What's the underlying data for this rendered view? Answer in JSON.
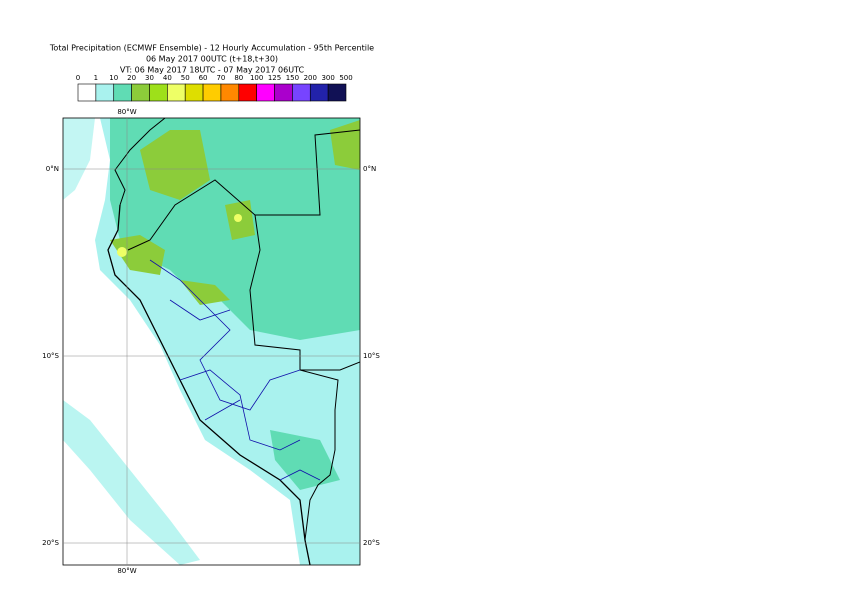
{
  "header": {
    "title": "Total Precipitation (ECMWF Ensemble) - 12 Hourly Accumulation - 95th Percentile",
    "base_time": "06 May 2017 00UTC (t+18,t+30)",
    "valid_time": "VT: 06 May 2017 18UTC - 07 May 2017 06UTC"
  },
  "colorbar": {
    "levels": [
      0,
      1,
      10,
      20,
      30,
      40,
      50,
      60,
      70,
      80,
      100,
      125,
      150,
      200,
      300,
      500
    ],
    "colors": [
      "#ffffff",
      "#a9f2ee",
      "#60dcb4",
      "#8ccc3a",
      "#9ee01a",
      "#eeff66",
      "#dede00",
      "#ffcc00",
      "#ff8800",
      "#ff0000",
      "#ff00ff",
      "#aa00cc",
      "#7744ff",
      "#2222aa",
      "#111155"
    ]
  },
  "map": {
    "lon_labels": [
      "80°W"
    ],
    "lat_labels": [
      "0°N",
      "10°S",
      "20°S"
    ]
  }
}
